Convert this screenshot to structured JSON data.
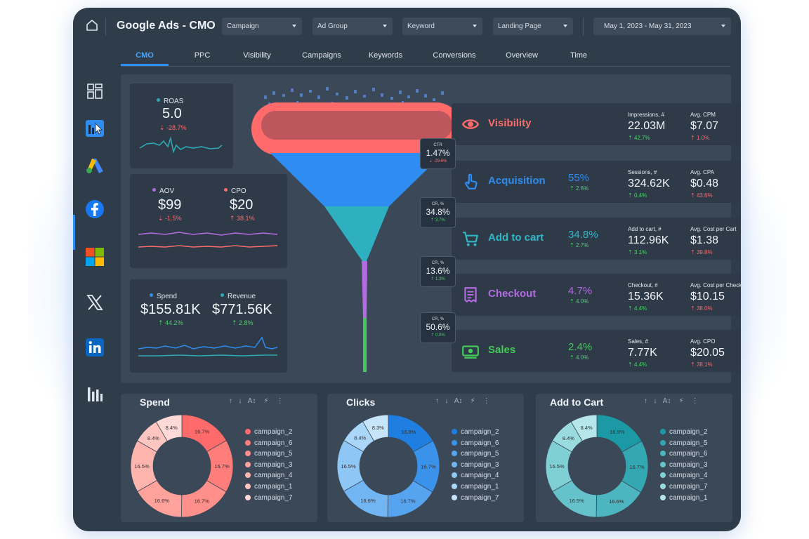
{
  "header": {
    "title": "Google Ads - CMO",
    "filters": [
      "Campaign",
      "Ad Group",
      "Keyword",
      "Landing Page"
    ],
    "date_range": "May 1, 2023 - May 31, 2023"
  },
  "tabs": [
    "CMO",
    "PPC",
    "Visibility",
    "Campaigns",
    "Keywords",
    "Conversions",
    "Overview",
    "Time"
  ],
  "active_tab": "CMO",
  "sidebar": {
    "items": [
      "dashboard-icon",
      "analytics-cursor-icon",
      "google-ads-icon",
      "facebook-icon",
      "microsoft-icon",
      "x-icon",
      "linkedin-icon",
      "bar-chart-icon"
    ],
    "active": "google-ads-icon"
  },
  "kpis": {
    "roas": {
      "label": "ROAS",
      "value": "5.0",
      "delta": "-28.7%",
      "trend": "down",
      "color": "#2fa7b5"
    },
    "aov": {
      "label": "AOV",
      "value": "$99",
      "delta": "-1.5%",
      "trend": "down",
      "color": "#b26be0"
    },
    "cpo": {
      "label": "CPO",
      "value": "$20",
      "delta": "38.1%",
      "trend": "up-bad",
      "color": "#ff6b6b"
    },
    "spend": {
      "label": "Spend",
      "value": "$155.81K",
      "delta": "44.2%",
      "trend": "up",
      "color": "#2f8cf0"
    },
    "revenue": {
      "label": "Revenue",
      "value": "$771.56K",
      "delta": "2.8%",
      "trend": "up",
      "color": "#2fa7b5"
    }
  },
  "funnel": {
    "conversions": [
      {
        "label": "CTR",
        "value": "1.47%",
        "delta": "-29.6%",
        "trend": "down"
      },
      {
        "label": "CR, %",
        "value": "34.8%",
        "delta": "3.7%",
        "trend": "up"
      },
      {
        "label": "CR, %",
        "value": "13.6%",
        "delta": "1.3%",
        "trend": "up"
      },
      {
        "label": "CR, %",
        "value": "50.6%",
        "delta": "0.0%",
        "trend": "up"
      }
    ],
    "stages": [
      {
        "name": "Visibility",
        "icon": "eye-icon",
        "color": "#ff6b6b",
        "pct": "",
        "pct_delta": "",
        "m1_label": "Impressions, #",
        "m1_value": "22.03M",
        "m1_delta": "42.7%",
        "m1_trend": "up",
        "m2_label": "Avg. CPM",
        "m2_value": "$7.07",
        "m2_delta": "1.0%",
        "m2_trend": "up-bad"
      },
      {
        "name": "Acquisition",
        "icon": "tap-icon",
        "color": "#2f8cf0",
        "pct": "55%",
        "pct_delta": "2.6%",
        "m1_label": "Sessions, #",
        "m1_value": "324.62K",
        "m1_delta": "0.4%",
        "m1_trend": "up",
        "m2_label": "Avg. CPA",
        "m2_value": "$0.48",
        "m2_delta": "43.6%",
        "m2_trend": "up-bad"
      },
      {
        "name": "Add to cart",
        "icon": "cart-icon",
        "color": "#2fb8c8",
        "pct": "34.8%",
        "pct_delta": "2.7%",
        "m1_label": "Add to cart, #",
        "m1_value": "112.96K",
        "m1_delta": "3.1%",
        "m1_trend": "up",
        "m2_label": "Avg. Cost per Cart",
        "m2_value": "$1.38",
        "m2_delta": "39.8%",
        "m2_trend": "up-bad"
      },
      {
        "name": "Checkout",
        "icon": "receipt-icon",
        "color": "#b26be0",
        "pct": "4.7%",
        "pct_delta": "4.0%",
        "m1_label": "Checkout, #",
        "m1_value": "15.36K",
        "m1_delta": "4.4%",
        "m1_trend": "up",
        "m2_label": "Avg. Cost per Checkout",
        "m2_value": "$10.15",
        "m2_delta": "38.0%",
        "m2_trend": "up-bad"
      },
      {
        "name": "Sales",
        "icon": "money-icon",
        "color": "#44c95a",
        "pct": "2.4%",
        "pct_delta": "4.0%",
        "m1_label": "Sales, #",
        "m1_value": "7.77K",
        "m1_delta": "4.4%",
        "m1_trend": "up",
        "m2_label": "Avg. CPO",
        "m2_value": "$20.05",
        "m2_delta": "38.1%",
        "m2_trend": "up-bad"
      }
    ]
  },
  "chart_data": [
    {
      "type": "pie",
      "title": "Spend",
      "categories": [
        "campaign_2",
        "campaign_6",
        "campaign_5",
        "campaign_3",
        "campaign_4",
        "campaign_1",
        "campaign_7"
      ],
      "values": [
        16.7,
        16.7,
        16.7,
        16.6,
        16.5,
        8.4,
        8.4
      ],
      "labels": [
        "16.7%",
        "16.7%",
        "16.7%",
        "16.6%",
        "16.5%",
        "8.4%",
        "8.4%"
      ],
      "colors": [
        "#ff6b6b",
        "#ff7d7a",
        "#ff8f8a",
        "#ffa29c",
        "#ffb4ae",
        "#ffc6c1",
        "#ffd9d5"
      ]
    },
    {
      "type": "pie",
      "title": "Clicks",
      "categories": [
        "campaign_2",
        "campaign_6",
        "campaign_5",
        "campaign_3",
        "campaign_4",
        "campaign_1",
        "campaign_7"
      ],
      "values": [
        16.8,
        16.7,
        16.7,
        16.6,
        16.5,
        8.4,
        8.3
      ],
      "labels": [
        "16.8%",
        "16.7%",
        "16.7%",
        "16.6%",
        "16.5%",
        "8.4%",
        "8.3%"
      ],
      "colors": [
        "#1e7fe0",
        "#3a92ea",
        "#56a4ef",
        "#72b5f3",
        "#8ec6f6",
        "#aad6f9",
        "#c6e5fb"
      ]
    },
    {
      "type": "pie",
      "title": "Add to Cart",
      "categories": [
        "campaign_2",
        "campaign_5",
        "campaign_6",
        "campaign_3",
        "campaign_4",
        "campaign_7",
        "campaign_1"
      ],
      "values": [
        16.9,
        16.7,
        16.6,
        16.5,
        16.5,
        8.4,
        8.4
      ],
      "labels": [
        "16.9%",
        "16.7%",
        "16.6%",
        "16.5%",
        "16.5%",
        "8.4%",
        "8.4%"
      ],
      "colors": [
        "#1b9aa6",
        "#33a8b3",
        "#4cb5bf",
        "#66c2ca",
        "#80cfd5",
        "#9adbe0",
        "#b5e7ea"
      ]
    }
  ]
}
